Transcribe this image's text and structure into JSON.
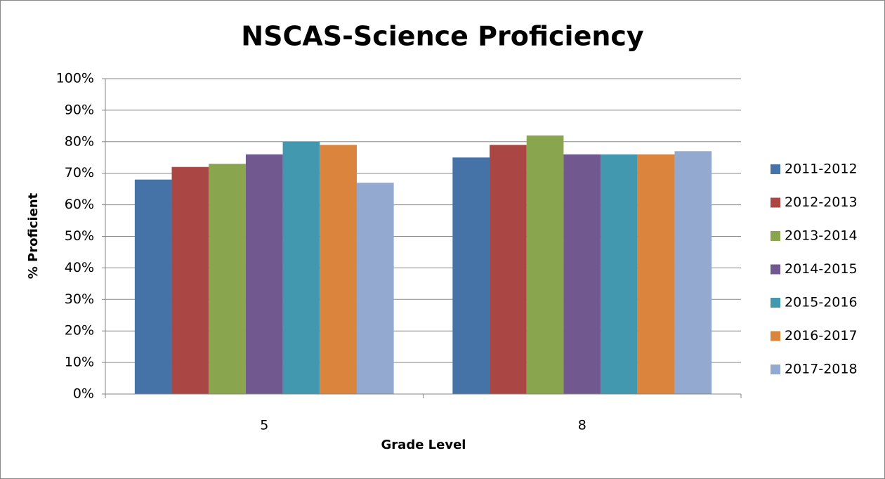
{
  "chart_data": {
    "type": "bar",
    "title": "NSCAS-Science Proficiency",
    "x_label": "Grade Level",
    "y_label": "% Proficient",
    "categories": [
      "5",
      "8"
    ],
    "series": [
      {
        "name": "2011-2012",
        "color": "#4572a7",
        "values": [
          68,
          75
        ]
      },
      {
        "name": "2012-2013",
        "color": "#aa4643",
        "values": [
          72,
          79
        ]
      },
      {
        "name": "2013-2014",
        "color": "#89a54e",
        "values": [
          73,
          82
        ]
      },
      {
        "name": "2014-2015",
        "color": "#71588f",
        "values": [
          76,
          76
        ]
      },
      {
        "name": "2015-2016",
        "color": "#4198af",
        "values": [
          80,
          76
        ]
      },
      {
        "name": "2016-2017",
        "color": "#db843d",
        "values": [
          79,
          76
        ]
      },
      {
        "name": "2017-2018",
        "color": "#93a9cf",
        "values": [
          67,
          77
        ]
      }
    ],
    "ylim": [
      0,
      100
    ],
    "yticks": [
      {
        "value": 0,
        "label": "0%"
      },
      {
        "value": 10,
        "label": "10%"
      },
      {
        "value": 20,
        "label": "20%"
      },
      {
        "value": 30,
        "label": "30%"
      },
      {
        "value": 40,
        "label": "40%"
      },
      {
        "value": 50,
        "label": "50%"
      },
      {
        "value": 60,
        "label": "60%"
      },
      {
        "value": 70,
        "label": "70%"
      },
      {
        "value": 80,
        "label": "80%"
      },
      {
        "value": 90,
        "label": "90%"
      },
      {
        "value": 100,
        "label": "100%"
      }
    ],
    "grid": true,
    "legend": "right"
  }
}
